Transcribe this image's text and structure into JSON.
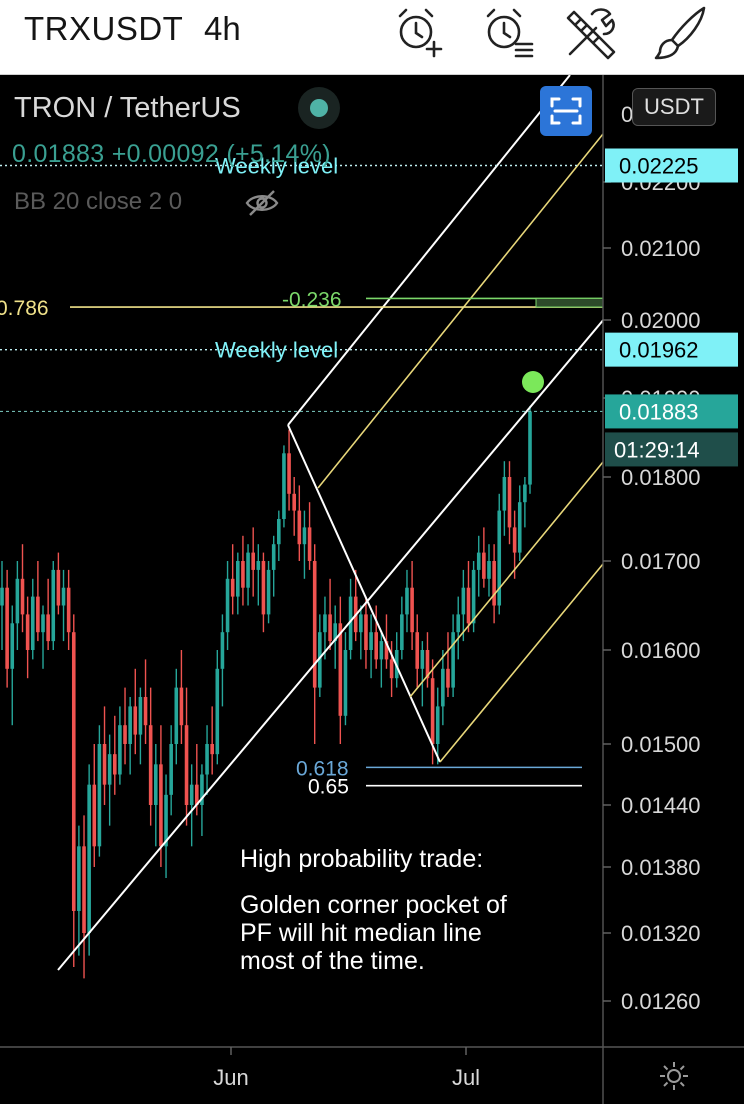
{
  "header": {
    "symbol": "TRXUSDT",
    "timeframe": "4h"
  },
  "legend": {
    "title": "TRON / TetherUS",
    "price_change": "0.01883 +0.00092 (+5.14%)",
    "indicator": "BB 20 close 2 0",
    "unit": "USDT"
  },
  "annotation": {
    "line1": "High probability trade:",
    "line2": "Golden corner pocket of",
    "line3": "PF will hit median line",
    "line4": "most of the time."
  },
  "chart_data": {
    "type": "candlestick",
    "symbol": "TRXUSDT",
    "timeframe": "4h",
    "x_labels": [
      "Jun",
      "Jul"
    ],
    "y_ticks": [
      0.022,
      0.021,
      0.02,
      0.019,
      0.018,
      0.017,
      0.016,
      0.015,
      0.0144,
      0.0138,
      0.0132,
      0.0126
    ],
    "y_tick_labels": [
      "0.02200",
      "0.02100",
      "0.02000",
      "0.01900",
      "0.01800",
      "0.01700",
      "0.01600",
      "0.01500",
      "0.01440",
      "0.01380",
      "0.01320",
      "0.01260"
    ],
    "price_tags": [
      {
        "label": "0.02225",
        "value": 0.02225,
        "color": "#7ff1f7",
        "text_color": "#000000"
      },
      {
        "label": "0.01962",
        "value": 0.01962,
        "color": "#7ff1f7",
        "text_color": "#000000"
      },
      {
        "label": "0.01883",
        "value": 0.01883,
        "color": "#26a69a",
        "text_color": "#ffffff"
      }
    ],
    "countdown": "01:29:14",
    "levels": [
      {
        "label": "Weekly level",
        "value": 0.02225,
        "style": "dotted",
        "color": "#7ff1f7"
      },
      {
        "label": "Weekly level",
        "value": 0.01962,
        "style": "dotted",
        "color": "#7ff1f7"
      },
      {
        "label": "0.01883",
        "value": 0.01883,
        "style": "dashed",
        "color": "#26a69a"
      }
    ],
    "fib_levels": [
      {
        "label": "0.786",
        "value": 0.02018,
        "color": "#f0e28a"
      },
      {
        "label": "-0.236",
        "value": 0.0203,
        "color": "#7bd86a"
      },
      {
        "label": "0.618",
        "value": 0.01477,
        "color": "#6aa8d8"
      },
      {
        "label": "0.65",
        "value": 0.01459,
        "color": "#ffffff"
      }
    ],
    "candles": [
      [
        0.0165,
        0.017,
        0.016,
        0.0167
      ],
      [
        0.0167,
        0.0169,
        0.0156,
        0.0158
      ],
      [
        0.0158,
        0.0165,
        0.0152,
        0.0163
      ],
      [
        0.0163,
        0.017,
        0.016,
        0.0168
      ],
      [
        0.0168,
        0.0172,
        0.0162,
        0.0164
      ],
      [
        0.0164,
        0.0166,
        0.0157,
        0.016
      ],
      [
        0.016,
        0.0168,
        0.0159,
        0.0166
      ],
      [
        0.0166,
        0.017,
        0.0161,
        0.0162
      ],
      [
        0.0162,
        0.0165,
        0.0158,
        0.0164
      ],
      [
        0.0164,
        0.0168,
        0.016,
        0.0161
      ],
      [
        0.0161,
        0.017,
        0.016,
        0.0169
      ],
      [
        0.0169,
        0.0171,
        0.0164,
        0.0165
      ],
      [
        0.0165,
        0.0169,
        0.0161,
        0.0167
      ],
      [
        0.0167,
        0.0169,
        0.016,
        0.0162
      ],
      [
        0.0162,
        0.0164,
        0.0129,
        0.0134
      ],
      [
        0.0134,
        0.0142,
        0.013,
        0.014
      ],
      [
        0.014,
        0.0143,
        0.0128,
        0.0132
      ],
      [
        0.0132,
        0.0148,
        0.013,
        0.0146
      ],
      [
        0.0146,
        0.015,
        0.0138,
        0.014
      ],
      [
        0.014,
        0.0152,
        0.0139,
        0.015
      ],
      [
        0.015,
        0.0154,
        0.0144,
        0.0146
      ],
      [
        0.0146,
        0.0151,
        0.0142,
        0.0149
      ],
      [
        0.0149,
        0.0153,
        0.0145,
        0.0147
      ],
      [
        0.0147,
        0.0154,
        0.0146,
        0.0152
      ],
      [
        0.0152,
        0.0156,
        0.0148,
        0.015
      ],
      [
        0.015,
        0.0155,
        0.0147,
        0.0154
      ],
      [
        0.0154,
        0.0158,
        0.0149,
        0.0151
      ],
      [
        0.0151,
        0.0156,
        0.0148,
        0.0155
      ],
      [
        0.0155,
        0.0159,
        0.015,
        0.0152
      ],
      [
        0.0152,
        0.0156,
        0.0142,
        0.0144
      ],
      [
        0.0144,
        0.015,
        0.014,
        0.0148
      ],
      [
        0.0148,
        0.0152,
        0.0138,
        0.014
      ],
      [
        0.014,
        0.0147,
        0.0137,
        0.0145
      ],
      [
        0.0145,
        0.0152,
        0.0143,
        0.015
      ],
      [
        0.015,
        0.0158,
        0.0148,
        0.0156
      ],
      [
        0.0156,
        0.016,
        0.015,
        0.0152
      ],
      [
        0.0152,
        0.0156,
        0.0142,
        0.0144
      ],
      [
        0.0144,
        0.0148,
        0.014,
        0.0146
      ],
      [
        0.0146,
        0.015,
        0.0143,
        0.0144
      ],
      [
        0.0144,
        0.0148,
        0.0141,
        0.0147
      ],
      [
        0.0147,
        0.0152,
        0.0145,
        0.015
      ],
      [
        0.015,
        0.0154,
        0.0147,
        0.0149
      ],
      [
        0.0149,
        0.016,
        0.0148,
        0.0158
      ],
      [
        0.0158,
        0.0164,
        0.0154,
        0.0162
      ],
      [
        0.0162,
        0.017,
        0.016,
        0.0168
      ],
      [
        0.0168,
        0.0172,
        0.0164,
        0.0166
      ],
      [
        0.0166,
        0.0171,
        0.0164,
        0.017
      ],
      [
        0.017,
        0.0173,
        0.0165,
        0.0167
      ],
      [
        0.0167,
        0.0172,
        0.0165,
        0.0171
      ],
      [
        0.0171,
        0.0174,
        0.0166,
        0.0169
      ],
      [
        0.0169,
        0.0172,
        0.0165,
        0.017
      ],
      [
        0.017,
        0.0171,
        0.0162,
        0.0164
      ],
      [
        0.0164,
        0.017,
        0.0163,
        0.0169
      ],
      [
        0.0169,
        0.0173,
        0.0166,
        0.0172
      ],
      [
        0.0172,
        0.0176,
        0.017,
        0.0175
      ],
      [
        0.0175,
        0.0184,
        0.0174,
        0.0183
      ],
      [
        0.0183,
        0.0186,
        0.0176,
        0.0178
      ],
      [
        0.0178,
        0.018,
        0.0173,
        0.0176
      ],
      [
        0.0176,
        0.0179,
        0.017,
        0.0172
      ],
      [
        0.0172,
        0.0176,
        0.0168,
        0.0174
      ],
      [
        0.0174,
        0.0177,
        0.0169,
        0.017
      ],
      [
        0.017,
        0.0172,
        0.015,
        0.0156
      ],
      [
        0.0156,
        0.0164,
        0.0155,
        0.0162
      ],
      [
        0.0162,
        0.0166,
        0.0159,
        0.0164
      ],
      [
        0.0164,
        0.0168,
        0.016,
        0.0161
      ],
      [
        0.0161,
        0.0165,
        0.0158,
        0.0163
      ],
      [
        0.0163,
        0.0166,
        0.015,
        0.0153
      ],
      [
        0.0153,
        0.0162,
        0.0152,
        0.016
      ],
      [
        0.016,
        0.0168,
        0.0159,
        0.0166
      ],
      [
        0.0166,
        0.0169,
        0.0161,
        0.0162
      ],
      [
        0.0162,
        0.0165,
        0.0159,
        0.0164
      ],
      [
        0.0164,
        0.0166,
        0.0158,
        0.016
      ],
      [
        0.016,
        0.0164,
        0.0157,
        0.0162
      ],
      [
        0.0162,
        0.0165,
        0.0158,
        0.0159
      ],
      [
        0.0159,
        0.0162,
        0.0156,
        0.0161
      ],
      [
        0.0161,
        0.0164,
        0.0158,
        0.0159
      ],
      [
        0.0159,
        0.0161,
        0.0155,
        0.0157
      ],
      [
        0.0157,
        0.0162,
        0.0156,
        0.016
      ],
      [
        0.016,
        0.0166,
        0.0159,
        0.0164
      ],
      [
        0.0164,
        0.0169,
        0.0162,
        0.0167
      ],
      [
        0.0167,
        0.017,
        0.016,
        0.0162
      ],
      [
        0.0162,
        0.0164,
        0.0156,
        0.0158
      ],
      [
        0.0158,
        0.0161,
        0.0154,
        0.016
      ],
      [
        0.016,
        0.0162,
        0.0156,
        0.0157
      ],
      [
        0.0157,
        0.0159,
        0.0148,
        0.015
      ],
      [
        0.015,
        0.0156,
        0.0148,
        0.0154
      ],
      [
        0.0154,
        0.016,
        0.0152,
        0.0158
      ],
      [
        0.0158,
        0.0162,
        0.0155,
        0.0156
      ],
      [
        0.0156,
        0.0164,
        0.0155,
        0.0162
      ],
      [
        0.0162,
        0.0166,
        0.0159,
        0.0164
      ],
      [
        0.0164,
        0.0169,
        0.0161,
        0.0167
      ],
      [
        0.0167,
        0.017,
        0.0162,
        0.0163
      ],
      [
        0.0163,
        0.017,
        0.0162,
        0.0169
      ],
      [
        0.0169,
        0.0173,
        0.0166,
        0.0171
      ],
      [
        0.0171,
        0.0174,
        0.0167,
        0.0168
      ],
      [
        0.0168,
        0.0172,
        0.0166,
        0.017
      ],
      [
        0.017,
        0.0172,
        0.0163,
        0.0165
      ],
      [
        0.0165,
        0.0178,
        0.0164,
        0.0176
      ],
      [
        0.0176,
        0.0182,
        0.0173,
        0.018
      ],
      [
        0.018,
        0.0182,
        0.0172,
        0.0174
      ],
      [
        0.0174,
        0.0176,
        0.0168,
        0.0171
      ],
      [
        0.0171,
        0.0179,
        0.017,
        0.0177
      ],
      [
        0.0177,
        0.018,
        0.0174,
        0.01791
      ],
      [
        0.01791,
        0.0189,
        0.0178,
        0.01883
      ]
    ]
  }
}
